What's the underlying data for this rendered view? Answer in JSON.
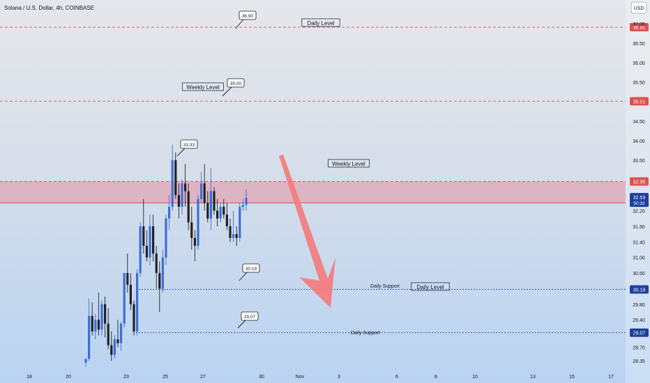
{
  "header": {
    "symbol_line": "Solana / U.S. Dollar, 4h, COINBASE",
    "currency": "USD"
  },
  "colors": {
    "up": "#3b6fd8",
    "down": "#222222",
    "level_red": "#d9534f",
    "level_blue": "#1e3fa0",
    "zone_fill": "#e39aaa",
    "arrow": "#f47a7a",
    "label_current": "#1e3fa0"
  },
  "chart_data": {
    "type": "candlestick",
    "title": "Solana / U.S. Dollar, 4h, COINBASE",
    "ylim": [
      28.2,
      37.15
    ],
    "x_ticks": [
      "18",
      "20",
      "23",
      "25",
      "27",
      "30",
      "Nov",
      "3",
      "6",
      "8",
      "10",
      "13",
      "15",
      "17"
    ],
    "y_ticks": [
      "28.35",
      "28.70",
      "29.07",
      "29.40",
      "29.80",
      "30.18",
      "30.60",
      "31.00",
      "31.40",
      "31.80",
      "32.20",
      "32.53",
      "32.95",
      "33.50",
      "34.00",
      "34.50",
      "35.01",
      "35.50",
      "36.00",
      "36.50",
      "36.91",
      "37.00"
    ],
    "grid": false,
    "current_price": {
      "value": "32.53",
      "timer": "50:32"
    },
    "levels": [
      {
        "price": 36.91,
        "label": "36.91",
        "style": "dashed",
        "color": "red",
        "name": "Daily Level"
      },
      {
        "price": 35.01,
        "label": "35.01",
        "style": "dashed",
        "color": "red",
        "name": "Weekly Level"
      },
      {
        "price": 32.95,
        "label": "32.95",
        "style": "dashed",
        "color": "red",
        "name": "Weekly Level"
      },
      {
        "price": 30.18,
        "label": "30.18",
        "style": "dotted",
        "color": "blue",
        "name": "Daily Support"
      },
      {
        "price": 29.07,
        "label": "29.07",
        "style": "dotted",
        "color": "blue",
        "name": "Daily Support"
      }
    ],
    "zone": {
      "from": 32.4,
      "to": 32.95
    },
    "callouts": [
      "36.90",
      "35.00",
      "33.33",
      "30.19",
      "29.07"
    ],
    "annotations": [
      "Daily Level",
      "Weekly Level",
      "Weekly Level",
      "Daily Support",
      "Daily Level",
      "Daily Support"
    ],
    "candles": [
      {
        "o": 28.3,
        "h": 28.4,
        "l": 28.2,
        "c": 28.4
      },
      {
        "o": 28.4,
        "h": 29.95,
        "l": 28.35,
        "c": 29.5
      },
      {
        "o": 29.5,
        "h": 29.85,
        "l": 29.0,
        "c": 29.1
      },
      {
        "o": 29.1,
        "h": 29.55,
        "l": 28.9,
        "c": 29.4
      },
      {
        "o": 29.4,
        "h": 30.1,
        "l": 29.0,
        "c": 29.15
      },
      {
        "o": 29.15,
        "h": 29.9,
        "l": 29.0,
        "c": 29.8
      },
      {
        "o": 29.8,
        "h": 30.0,
        "l": 28.95,
        "c": 29.3
      },
      {
        "o": 29.3,
        "h": 29.7,
        "l": 28.65,
        "c": 28.75
      },
      {
        "o": 28.75,
        "h": 29.1,
        "l": 28.35,
        "c": 28.5
      },
      {
        "o": 28.5,
        "h": 29.0,
        "l": 28.4,
        "c": 28.9
      },
      {
        "o": 28.9,
        "h": 29.4,
        "l": 28.7,
        "c": 28.8
      },
      {
        "o": 28.8,
        "h": 29.35,
        "l": 28.6,
        "c": 29.3
      },
      {
        "o": 29.3,
        "h": 30.6,
        "l": 29.2,
        "c": 30.6
      },
      {
        "o": 30.6,
        "h": 31.1,
        "l": 30.1,
        "c": 30.3
      },
      {
        "o": 30.3,
        "h": 30.6,
        "l": 29.65,
        "c": 29.8
      },
      {
        "o": 29.8,
        "h": 29.9,
        "l": 29.0,
        "c": 29.1
      },
      {
        "o": 29.1,
        "h": 30.7,
        "l": 29.0,
        "c": 30.6
      },
      {
        "o": 30.6,
        "h": 31.9,
        "l": 30.5,
        "c": 31.8
      },
      {
        "o": 31.8,
        "h": 32.5,
        "l": 31.1,
        "c": 31.3
      },
      {
        "o": 31.3,
        "h": 31.7,
        "l": 30.9,
        "c": 31.0
      },
      {
        "o": 31.0,
        "h": 32.1,
        "l": 30.8,
        "c": 31.8
      },
      {
        "o": 31.8,
        "h": 32.1,
        "l": 30.9,
        "c": 31.1
      },
      {
        "o": 31.1,
        "h": 31.3,
        "l": 30.2,
        "c": 30.6
      },
      {
        "o": 30.6,
        "h": 30.9,
        "l": 29.6,
        "c": 30.2
      },
      {
        "o": 30.2,
        "h": 31.2,
        "l": 30.1,
        "c": 31.0
      },
      {
        "o": 31.0,
        "h": 32.1,
        "l": 30.8,
        "c": 32.0
      },
      {
        "o": 32.0,
        "h": 32.6,
        "l": 31.7,
        "c": 32.3
      },
      {
        "o": 32.3,
        "h": 33.9,
        "l": 32.2,
        "c": 33.5
      },
      {
        "o": 33.5,
        "h": 33.7,
        "l": 32.5,
        "c": 32.6
      },
      {
        "o": 32.6,
        "h": 32.9,
        "l": 32.0,
        "c": 32.3
      },
      {
        "o": 32.3,
        "h": 33.0,
        "l": 32.1,
        "c": 32.9
      },
      {
        "o": 32.9,
        "h": 33.4,
        "l": 32.3,
        "c": 32.7
      },
      {
        "o": 32.7,
        "h": 32.9,
        "l": 31.7,
        "c": 31.9
      },
      {
        "o": 31.9,
        "h": 32.3,
        "l": 31.2,
        "c": 31.5
      },
      {
        "o": 31.5,
        "h": 31.7,
        "l": 30.9,
        "c": 31.3
      },
      {
        "o": 31.3,
        "h": 32.6,
        "l": 31.2,
        "c": 32.5
      },
      {
        "o": 32.5,
        "h": 33.2,
        "l": 32.4,
        "c": 32.9
      },
      {
        "o": 32.9,
        "h": 33.4,
        "l": 32.2,
        "c": 32.4
      },
      {
        "o": 32.4,
        "h": 32.7,
        "l": 31.9,
        "c": 32.0
      },
      {
        "o": 32.0,
        "h": 33.3,
        "l": 31.7,
        "c": 32.7
      },
      {
        "o": 32.7,
        "h": 32.8,
        "l": 32.1,
        "c": 32.2
      },
      {
        "o": 32.2,
        "h": 32.5,
        "l": 31.8,
        "c": 32.0
      },
      {
        "o": 32.0,
        "h": 32.4,
        "l": 31.9,
        "c": 32.3
      },
      {
        "o": 32.3,
        "h": 32.5,
        "l": 32.0,
        "c": 32.1
      },
      {
        "o": 32.1,
        "h": 32.4,
        "l": 31.7,
        "c": 31.8
      },
      {
        "o": 31.8,
        "h": 32.0,
        "l": 31.4,
        "c": 31.5
      },
      {
        "o": 31.5,
        "h": 32.2,
        "l": 31.4,
        "c": 31.6
      },
      {
        "o": 31.6,
        "h": 31.8,
        "l": 31.3,
        "c": 31.5
      },
      {
        "o": 31.5,
        "h": 32.4,
        "l": 31.4,
        "c": 32.3
      },
      {
        "o": 32.3,
        "h": 32.5,
        "l": 32.2,
        "c": 32.35
      },
      {
        "o": 32.35,
        "h": 32.75,
        "l": 32.2,
        "c": 32.53
      }
    ]
  }
}
